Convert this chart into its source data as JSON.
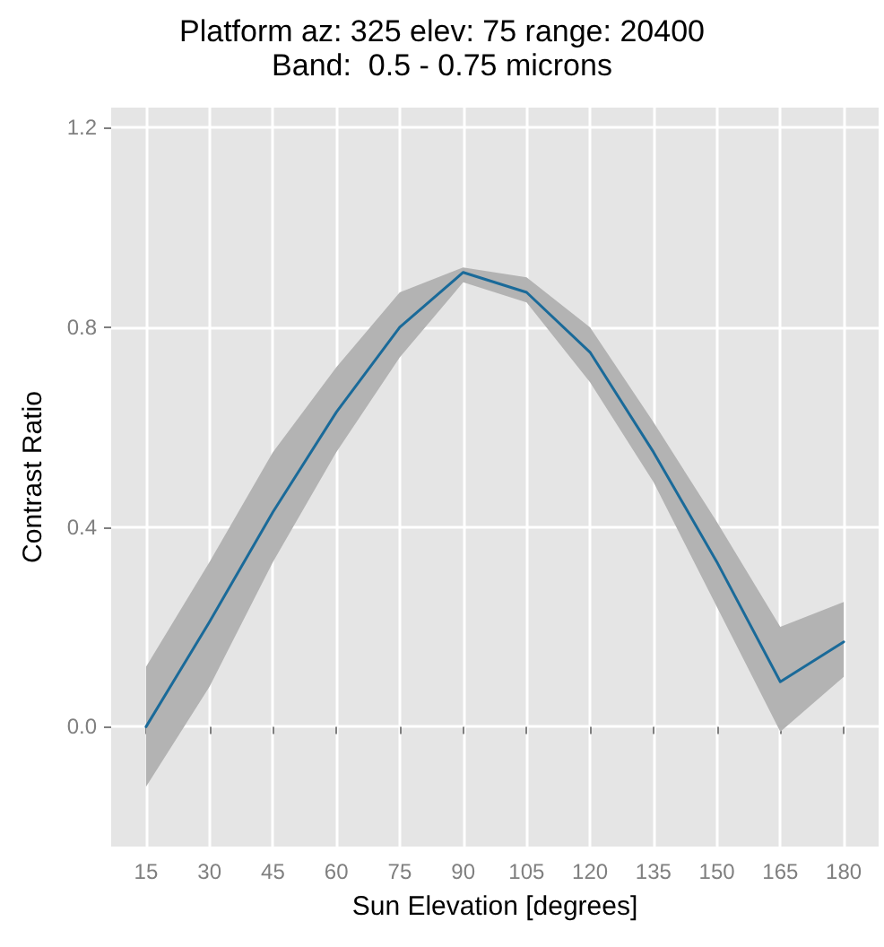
{
  "chart_data": {
    "type": "line",
    "title": "Platform az: 325 elev: 75 range: 20400",
    "subtitle": "Band:  0.5 - 0.75 microns",
    "xlabel": "Sun Elevation [degrees]",
    "ylabel": "Contrast Ratio",
    "x": [
      15,
      30,
      45,
      60,
      75,
      90,
      105,
      120,
      135,
      150,
      165,
      180
    ],
    "series": [
      {
        "color": "#1a6a99",
        "values": [
          0.0,
          0.21,
          0.43,
          0.63,
          0.8,
          0.91,
          0.87,
          0.75,
          0.55,
          0.33,
          0.09,
          0.17
        ],
        "lower": [
          -0.12,
          0.08,
          0.33,
          0.55,
          0.74,
          0.89,
          0.85,
          0.69,
          0.49,
          0.24,
          -0.01,
          0.1
        ],
        "upper": [
          0.12,
          0.33,
          0.55,
          0.72,
          0.87,
          0.92,
          0.9,
          0.8,
          0.61,
          0.41,
          0.2,
          0.25
        ]
      }
    ],
    "xlim": [
      6.75,
      188.25
    ],
    "xticks": [
      15,
      30,
      45,
      60,
      75,
      90,
      105,
      120,
      135,
      150,
      165,
      180
    ],
    "ylim": [
      -0.24,
      1.24
    ],
    "yticks": [
      {
        "value": 0,
        "label": "0.0"
      },
      {
        "value": 0.4,
        "label": "0.4"
      },
      {
        "value": 0.8,
        "label": "0.8"
      },
      {
        "value": 1.2,
        "label": "1.2"
      }
    ],
    "grid": true,
    "marker": "none",
    "line_style": "solid"
  }
}
